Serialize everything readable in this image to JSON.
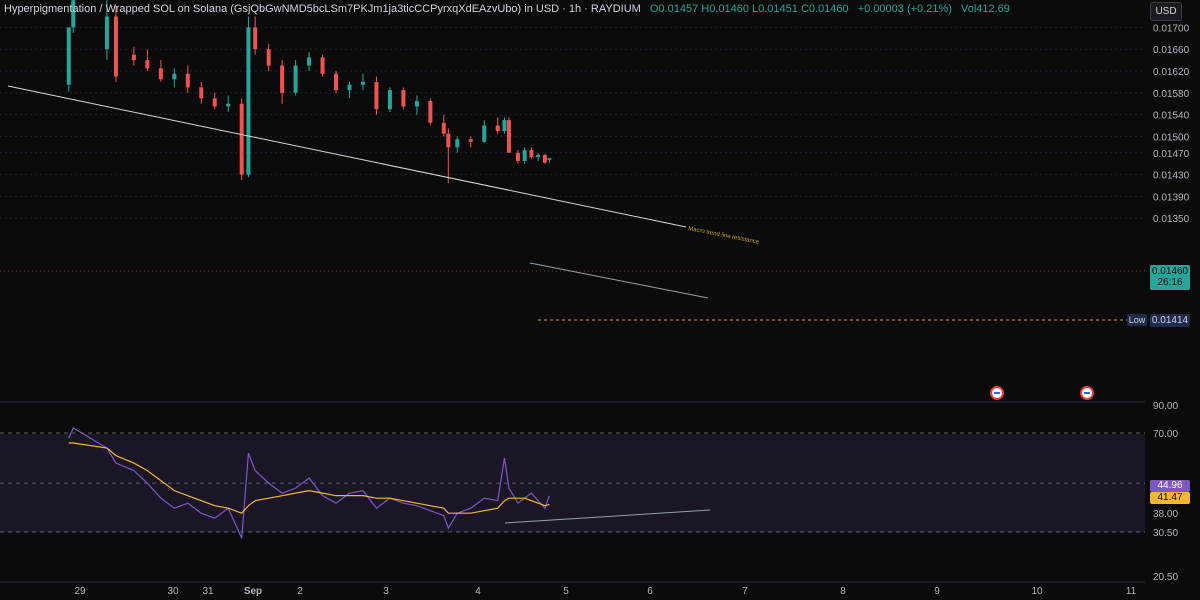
{
  "header": {
    "symbol": "Hyperpigmentation / Wrapped SOL on Solana (GsjQbGwNMD5bcLSm7PKJm1ja3ticCCPyrxqXdEAzvUbo) in USD · 1h · RAYDIUM",
    "ohlc": "O0.01457 H0.01460 L0.01451 C0.01460",
    "change": "+0.00003 (+0.21%)",
    "volume": "Vol412.69"
  },
  "toolbar": {
    "currency_button": "USD"
  },
  "price_axis": {
    "ticks": [
      "0.01700",
      "0.01660",
      "0.01620",
      "0.01580",
      "0.01540",
      "0.01500",
      "0.01470",
      "0.01430",
      "0.01390",
      "0.01350"
    ],
    "current_price": "0.01460",
    "countdown": "26:16",
    "low_label": "Low",
    "low_value": "0.01414"
  },
  "rsi_axis": {
    "ticks": [
      "90.00",
      "70.00",
      "50.00",
      "38.00",
      "30.50",
      "20.50"
    ],
    "rsi_value": "44.96",
    "ma_value": "41.47"
  },
  "time_axis": {
    "ticks": [
      "29",
      "30",
      "31",
      "Sep",
      "2",
      "3",
      "4",
      "5",
      "6",
      "7",
      "8",
      "9",
      "10",
      "11"
    ]
  },
  "annotations": {
    "trendline_label": "Macro trend line resistance"
  },
  "colors": {
    "up": "#26a69a",
    "down": "#ef5350",
    "rsi": "#7e57c2",
    "rsi_ma": "#f5b731",
    "current_price_bg": "#26a69a"
  },
  "chart_data": {
    "type": "candlestick",
    "interval": "1h",
    "ylim": [
      0.0133,
      0.0174
    ],
    "candles": [
      {
        "x": "Aug 28 19:00",
        "o": 0.01595,
        "h": 0.017,
        "l": 0.01582,
        "c": 0.017
      },
      {
        "x": "Aug 28 21:00",
        "o": 0.017,
        "h": 0.0176,
        "l": 0.0169,
        "c": 0.0175
      },
      {
        "x": "Aug 29 12:00",
        "o": 0.0166,
        "h": 0.0176,
        "l": 0.0164,
        "c": 0.0172
      },
      {
        "x": "Aug 29 16:00",
        "o": 0.0172,
        "h": 0.0174,
        "l": 0.016,
        "c": 0.0161
      },
      {
        "x": "Aug 30 00:00",
        "o": 0.0165,
        "h": 0.01665,
        "l": 0.0163,
        "c": 0.0164
      },
      {
        "x": "Aug 30 06:00",
        "o": 0.0164,
        "h": 0.0166,
        "l": 0.0162,
        "c": 0.01625
      },
      {
        "x": "Aug 30 12:00",
        "o": 0.01625,
        "h": 0.0164,
        "l": 0.016,
        "c": 0.01605
      },
      {
        "x": "Aug 30 18:00",
        "o": 0.01605,
        "h": 0.01625,
        "l": 0.0159,
        "c": 0.01615
      },
      {
        "x": "Aug 31 00:00",
        "o": 0.01615,
        "h": 0.0163,
        "l": 0.0158,
        "c": 0.0159
      },
      {
        "x": "Aug 31 06:00",
        "o": 0.0159,
        "h": 0.016,
        "l": 0.0156,
        "c": 0.0157
      },
      {
        "x": "Aug 31 12:00",
        "o": 0.0157,
        "h": 0.0158,
        "l": 0.0155,
        "c": 0.01555
      },
      {
        "x": "Aug 31 18:00",
        "o": 0.01555,
        "h": 0.01575,
        "l": 0.01545,
        "c": 0.0156
      },
      {
        "x": "Sep 1 00:00",
        "o": 0.0156,
        "h": 0.0157,
        "l": 0.0142,
        "c": 0.0143
      },
      {
        "x": "Sep 1 03:00",
        "o": 0.0143,
        "h": 0.0172,
        "l": 0.01425,
        "c": 0.017
      },
      {
        "x": "Sep 1 06:00",
        "o": 0.017,
        "h": 0.0172,
        "l": 0.0165,
        "c": 0.0166
      },
      {
        "x": "Sep 1 12:00",
        "o": 0.0166,
        "h": 0.0167,
        "l": 0.0162,
        "c": 0.0163
      },
      {
        "x": "Sep 1 18:00",
        "o": 0.0163,
        "h": 0.0164,
        "l": 0.0156,
        "c": 0.0158
      },
      {
        "x": "Sep 2 00:00",
        "o": 0.0158,
        "h": 0.0164,
        "l": 0.01575,
        "c": 0.0163
      },
      {
        "x": "Sep 2 06:00",
        "o": 0.0163,
        "h": 0.01655,
        "l": 0.0162,
        "c": 0.01645
      },
      {
        "x": "Sep 2 12:00",
        "o": 0.01645,
        "h": 0.0165,
        "l": 0.0161,
        "c": 0.01615
      },
      {
        "x": "Sep 2 18:00",
        "o": 0.01615,
        "h": 0.0162,
        "l": 0.0158,
        "c": 0.01585
      },
      {
        "x": "Sep 3 00:00",
        "o": 0.01585,
        "h": 0.016,
        "l": 0.0157,
        "c": 0.01595
      },
      {
        "x": "Sep 3 06:00",
        "o": 0.01595,
        "h": 0.01615,
        "l": 0.01585,
        "c": 0.016
      },
      {
        "x": "Sep 3 12:00",
        "o": 0.016,
        "h": 0.0161,
        "l": 0.0154,
        "c": 0.0155
      },
      {
        "x": "Sep 3 18:00",
        "o": 0.0155,
        "h": 0.0159,
        "l": 0.01545,
        "c": 0.01585
      },
      {
        "x": "Sep 4 00:00",
        "o": 0.01585,
        "h": 0.0159,
        "l": 0.0155,
        "c": 0.01555
      },
      {
        "x": "Sep 4 06:00",
        "o": 0.01555,
        "h": 0.01575,
        "l": 0.0154,
        "c": 0.01565
      },
      {
        "x": "Sep 4 12:00",
        "o": 0.01565,
        "h": 0.0157,
        "l": 0.0152,
        "c": 0.01525
      },
      {
        "x": "Sep 4 18:00",
        "o": 0.01525,
        "h": 0.0154,
        "l": 0.015,
        "c": 0.01505
      },
      {
        "x": "Sep 4 20:00",
        "o": 0.01505,
        "h": 0.01515,
        "l": 0.01414,
        "c": 0.0148
      },
      {
        "x": "Sep 5 00:00",
        "o": 0.0148,
        "h": 0.015,
        "l": 0.0147,
        "c": 0.01495
      },
      {
        "x": "Sep 5 06:00",
        "o": 0.01495,
        "h": 0.015,
        "l": 0.0148,
        "c": 0.0149
      },
      {
        "x": "Sep 5 12:00",
        "o": 0.0149,
        "h": 0.0153,
        "l": 0.01488,
        "c": 0.0152
      },
      {
        "x": "Sep 5 18:00",
        "o": 0.0152,
        "h": 0.01535,
        "l": 0.01505,
        "c": 0.0151
      },
      {
        "x": "Sep 5 21:00",
        "o": 0.0151,
        "h": 0.01535,
        "l": 0.01505,
        "c": 0.0153
      },
      {
        "x": "Sep 5 23:00",
        "o": 0.0153,
        "h": 0.01535,
        "l": 0.0147,
        "c": 0.0147
      },
      {
        "x": "Sep 6 03:00",
        "o": 0.0147,
        "h": 0.01475,
        "l": 0.0145,
        "c": 0.01455
      },
      {
        "x": "Sep 6 06:00",
        "o": 0.01455,
        "h": 0.0148,
        "l": 0.0145,
        "c": 0.01475
      },
      {
        "x": "Sep 6 09:00",
        "o": 0.01475,
        "h": 0.0148,
        "l": 0.01458,
        "c": 0.01462
      },
      {
        "x": "Sep 6 12:00",
        "o": 0.01462,
        "h": 0.0147,
        "l": 0.01455,
        "c": 0.01466
      },
      {
        "x": "Sep 6 15:00",
        "o": 0.01466,
        "h": 0.01468,
        "l": 0.0145,
        "c": 0.01452
      },
      {
        "x": "Sep 6 17:00",
        "o": 0.01457,
        "h": 0.0146,
        "l": 0.01451,
        "c": 0.0146
      }
    ],
    "rsi": {
      "name": "RSI",
      "values": [
        68,
        72,
        64,
        58,
        55,
        50,
        44,
        40,
        42,
        38,
        36,
        40,
        28,
        62,
        55,
        50,
        46,
        48,
        52,
        45,
        42,
        46,
        47,
        40,
        44,
        42,
        41,
        39,
        37,
        32,
        38,
        40,
        44,
        43,
        60,
        48,
        42,
        44,
        46,
        43,
        40,
        44.96
      ]
    },
    "rsi_ma": {
      "name": "RSI MA",
      "values": [
        66,
        66,
        64,
        61,
        58,
        55,
        51,
        47,
        45,
        43,
        41,
        40,
        38,
        41,
        43,
        44,
        45,
        46,
        47,
        46,
        45,
        45,
        45,
        44,
        44,
        43,
        42,
        41,
        40,
        38,
        38,
        38,
        39,
        40,
        43,
        44,
        44,
        44,
        43,
        42,
        41,
        41.47
      ]
    },
    "rsi_levels": [
      70,
      50,
      30.5
    ],
    "rsi_ylim": [
      20.5,
      90
    ],
    "trendlines": [
      {
        "label": "Macro trend line resistance",
        "from": {
          "x": "Aug 28 13:00",
          "y": 0.0165
        },
        "to": {
          "x": "Sep 6 10:00",
          "y": 0.01507
        }
      },
      {
        "label": "",
        "from": {
          "x": "Sep 4 18:00",
          "y": 0.01475
        },
        "to": {
          "x": "Sep 6 20:00",
          "y": 0.01436
        }
      }
    ]
  }
}
